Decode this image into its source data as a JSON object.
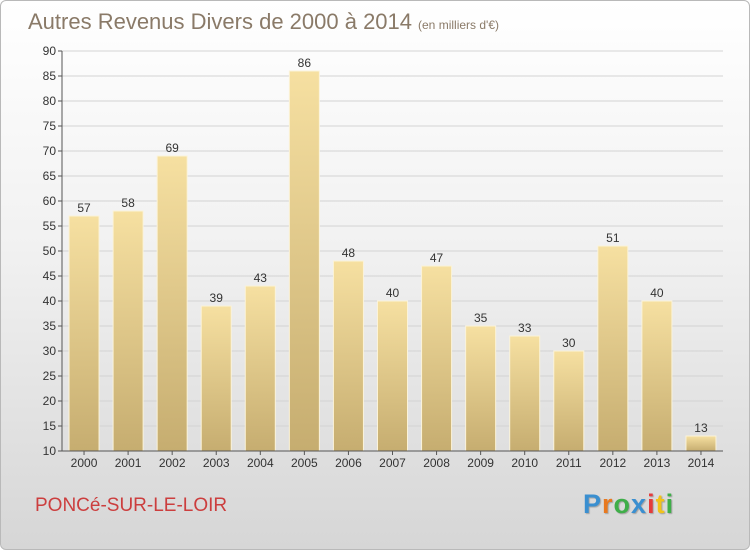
{
  "header": {
    "title": "Autres Revenus Divers de 2000 à 2014",
    "subtitle": "(en milliers d'€)"
  },
  "footer": {
    "commune": "PONCé-SUR-LE-LOIR",
    "logo_letters": [
      "P",
      "r",
      "o",
      "x",
      "i",
      "t",
      "i"
    ],
    "logo_colors": [
      "#3a8fd0",
      "#e8791f",
      "#3fae49",
      "#3a8fd0",
      "#e53b3b",
      "#f1c21b",
      "#3fae49"
    ]
  },
  "colors": {
    "bar_top": "#f6e0a1",
    "bar_bottom": "#c6ad70",
    "grid": "#d3d3d3",
    "text": "#333333"
  },
  "chart_data": {
    "type": "bar",
    "title": "Autres Revenus Divers de 2000 à 2014",
    "xlabel": "",
    "ylabel": "",
    "categories": [
      "2000",
      "2001",
      "2002",
      "2003",
      "2004",
      "2005",
      "2006",
      "2007",
      "2008",
      "2009",
      "2010",
      "2011",
      "2012",
      "2013",
      "2014"
    ],
    "values": [
      57,
      58,
      69,
      39,
      43,
      86,
      48,
      40,
      47,
      35,
      33,
      30,
      51,
      40,
      13
    ],
    "ylim": [
      10,
      90
    ],
    "yticks": [
      10,
      15,
      20,
      25,
      30,
      35,
      40,
      45,
      50,
      55,
      60,
      65,
      70,
      75,
      80,
      85,
      90
    ],
    "grid": true,
    "legend": "none"
  }
}
